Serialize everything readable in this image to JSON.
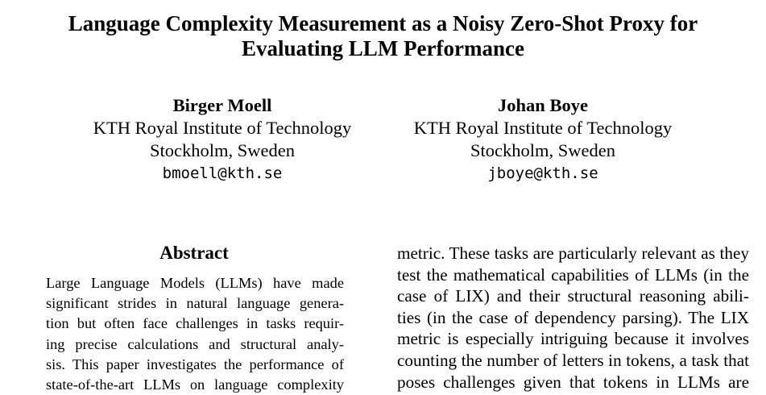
{
  "paper": {
    "title_lines": [
      "Language Complexity Measurement as a Noisy Zero-Shot Proxy for",
      "Evaluating LLM Performance"
    ]
  },
  "authors": [
    {
      "name": "Birger Moell",
      "affiliation": "KTH Royal Institute of Technology",
      "location": "Stockholm, Sweden",
      "email": "bmoell@kth.se"
    },
    {
      "name": "Johan Boye",
      "affiliation": "KTH Royal Institute of Technology",
      "location": "Stockholm, Sweden",
      "email": "jboye@kth.se"
    }
  ],
  "abstract": {
    "heading": "Abstract",
    "lines": [
      "Large Language Models (LLMs) have made",
      "significant strides in natural language genera-",
      "tion but often face challenges in tasks requir-",
      "ing precise calculations and structural analy-",
      "sis. This paper investigates the performance of",
      "state-of-the-art LLMs on language complexity"
    ]
  },
  "right_column": {
    "lines": [
      "metric. These tasks are particularly relevant as they",
      "test the mathematical capabilities of LLMs (in the",
      "case of LIX) and their structural reasoning abili-",
      "ties (in the case of dependency parsing). The LIX",
      "metric is especially intriguing because it involves",
      "counting the number of letters in tokens, a task that",
      "poses challenges given that tokens in LLMs are"
    ]
  }
}
